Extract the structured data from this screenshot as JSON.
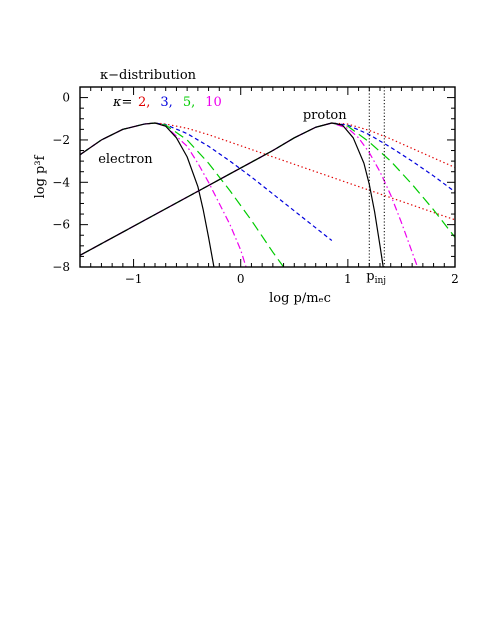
{
  "chart_data": {
    "type": "line",
    "title": "κ−distribution",
    "xlabel": "log p/mₑc",
    "ylabel": "log p³f",
    "xlim": [
      -1.5,
      2.0
    ],
    "ylim": [
      -8,
      0.5
    ],
    "x_ticks": [
      -1,
      0,
      1,
      2
    ],
    "x_tick_labels": [
      "−1",
      "0",
      "1",
      "2"
    ],
    "y_ticks": [
      0,
      -2,
      -4,
      -6,
      -8
    ],
    "y_tick_labels": [
      "0",
      "−2",
      "−4",
      "−6",
      "−8"
    ],
    "grid": false,
    "legend": {
      "prefix": "κ=",
      "entries": [
        {
          "label": "2,",
          "color": "#e00000"
        },
        {
          "label": "3,",
          "color": "#0000dd"
        },
        {
          "label": "5,",
          "color": "#00cc00"
        },
        {
          "label": "10",
          "color": "#ee00ee"
        }
      ],
      "placement": "top-left"
    },
    "annotations": [
      {
        "text": "electron",
        "x": -1.33,
        "y": -3.1
      },
      {
        "text": "proton",
        "x": 0.58,
        "y": -1.0
      }
    ],
    "reference_lines": {
      "label": "p",
      "label_subscript": "inj",
      "x": [
        1.2,
        1.34
      ]
    },
    "series": [
      {
        "group": "electron",
        "kappa": "2",
        "color": "#e00000",
        "dash": "dotted",
        "x": [
          -1.5,
          -1.3,
          -1.1,
          -0.9,
          -0.8,
          -0.7,
          -0.5,
          -0.3,
          -0.1,
          0.1,
          0.3,
          0.5,
          0.7,
          0.9,
          1.1,
          1.3,
          1.5,
          1.7,
          1.9,
          2.0
        ],
        "y": [
          -2.7,
          -2.0,
          -1.5,
          -1.25,
          -1.2,
          -1.25,
          -1.45,
          -1.75,
          -2.1,
          -2.45,
          -2.8,
          -3.15,
          -3.5,
          -3.85,
          -4.2,
          -4.55,
          -4.9,
          -5.25,
          -5.6,
          -5.77
        ]
      },
      {
        "group": "electron",
        "kappa": "3",
        "color": "#0000dd",
        "dash": "short-dash",
        "x": [
          -1.5,
          -1.3,
          -1.1,
          -0.9,
          -0.8,
          -0.7,
          -0.5,
          -0.3,
          -0.1,
          0.1,
          0.3,
          0.5,
          0.7,
          0.85
        ],
        "y": [
          -2.7,
          -2.0,
          -1.5,
          -1.25,
          -1.2,
          -1.28,
          -1.7,
          -2.3,
          -3.0,
          -3.75,
          -4.55,
          -5.35,
          -6.15,
          -6.75
        ]
      },
      {
        "group": "electron",
        "kappa": "5",
        "color": "#00cc00",
        "dash": "long-dash",
        "x": [
          -1.5,
          -1.3,
          -1.1,
          -0.9,
          -0.8,
          -0.7,
          -0.5,
          -0.3,
          -0.1,
          0.1,
          0.3,
          0.4
        ],
        "y": [
          -2.7,
          -2.0,
          -1.5,
          -1.25,
          -1.2,
          -1.3,
          -2.0,
          -3.1,
          -4.4,
          -5.8,
          -7.3,
          -8.0
        ]
      },
      {
        "group": "electron",
        "kappa": "10",
        "color": "#ee00ee",
        "dash": "dash-dot",
        "x": [
          -1.5,
          -1.3,
          -1.1,
          -0.9,
          -0.8,
          -0.7,
          -0.5,
          -0.4,
          -0.3,
          -0.2,
          -0.1,
          0.0,
          0.05
        ],
        "y": [
          -2.7,
          -2.0,
          -1.5,
          -1.25,
          -1.2,
          -1.35,
          -2.3,
          -3.1,
          -4.0,
          -5.0,
          -6.0,
          -7.2,
          -8.0
        ]
      },
      {
        "group": "electron",
        "kappa": "Maxwellian",
        "color": "#000000",
        "dash": "solid",
        "x": [
          -1.5,
          -1.3,
          -1.1,
          -0.9,
          -0.8,
          -0.7,
          -0.6,
          -0.5,
          -0.4,
          -0.35,
          -0.3,
          -0.25
        ],
        "y": [
          -2.7,
          -2.0,
          -1.5,
          -1.25,
          -1.2,
          -1.35,
          -1.9,
          -2.8,
          -4.2,
          -5.3,
          -6.6,
          -8.0
        ]
      },
      {
        "group": "proton",
        "kappa": "2",
        "color": "#e00000",
        "dash": "dotted",
        "x": [
          -1.5,
          -1.3,
          -1.1,
          -0.9,
          -0.7,
          -0.5,
          -0.3,
          -0.1,
          0.1,
          0.3,
          0.5,
          0.7,
          0.85,
          1.0,
          1.2,
          1.4,
          1.6,
          1.8,
          2.0
        ],
        "y": [
          -7.45,
          -6.9,
          -6.35,
          -5.8,
          -5.25,
          -4.7,
          -4.15,
          -3.6,
          -3.05,
          -2.5,
          -1.9,
          -1.4,
          -1.2,
          -1.25,
          -1.55,
          -1.95,
          -2.4,
          -2.85,
          -3.3
        ]
      },
      {
        "group": "proton",
        "kappa": "3",
        "color": "#0000dd",
        "dash": "short-dash",
        "x": [
          -1.5,
          -1.3,
          -1.1,
          -0.9,
          -0.7,
          -0.5,
          -0.3,
          -0.1,
          0.1,
          0.3,
          0.5,
          0.7,
          0.85,
          1.0,
          1.2,
          1.4,
          1.6,
          1.8,
          2.0
        ],
        "y": [
          -7.45,
          -6.9,
          -6.35,
          -5.8,
          -5.25,
          -4.7,
          -4.15,
          -3.6,
          -3.05,
          -2.5,
          -1.9,
          -1.4,
          -1.2,
          -1.3,
          -1.75,
          -2.35,
          -3.0,
          -3.7,
          -4.45
        ]
      },
      {
        "group": "proton",
        "kappa": "5",
        "color": "#00cc00",
        "dash": "long-dash",
        "x": [
          -1.5,
          -1.3,
          -1.1,
          -0.9,
          -0.7,
          -0.5,
          -0.3,
          -0.1,
          0.1,
          0.3,
          0.5,
          0.7,
          0.85,
          1.0,
          1.2,
          1.4,
          1.6,
          1.8,
          2.0
        ],
        "y": [
          -7.45,
          -6.9,
          -6.35,
          -5.8,
          -5.25,
          -4.7,
          -4.15,
          -3.6,
          -3.05,
          -2.5,
          -1.9,
          -1.4,
          -1.2,
          -1.35,
          -2.1,
          -3.0,
          -4.1,
          -5.3,
          -6.6
        ]
      },
      {
        "group": "proton",
        "kappa": "10",
        "color": "#ee00ee",
        "dash": "dash-dot",
        "x": [
          -1.5,
          -1.3,
          -1.1,
          -0.9,
          -0.7,
          -0.5,
          -0.3,
          -0.1,
          0.1,
          0.3,
          0.5,
          0.7,
          0.85,
          1.0,
          1.1,
          1.2,
          1.3,
          1.4,
          1.5,
          1.6,
          1.65
        ],
        "y": [
          -7.45,
          -6.9,
          -6.35,
          -5.8,
          -5.25,
          -4.7,
          -4.15,
          -3.6,
          -3.05,
          -2.5,
          -1.9,
          -1.4,
          -1.2,
          -1.45,
          -1.9,
          -2.6,
          -3.5,
          -4.6,
          -5.9,
          -7.3,
          -8.0
        ]
      },
      {
        "group": "proton",
        "kappa": "Maxwellian",
        "color": "#000000",
        "dash": "solid",
        "x": [
          -1.5,
          -1.3,
          -1.1,
          -0.9,
          -0.7,
          -0.5,
          -0.3,
          -0.1,
          0.1,
          0.3,
          0.5,
          0.7,
          0.85,
          0.95,
          1.05,
          1.15,
          1.2,
          1.25,
          1.3,
          1.33
        ],
        "y": [
          -7.45,
          -6.9,
          -6.35,
          -5.8,
          -5.25,
          -4.7,
          -4.15,
          -3.6,
          -3.05,
          -2.5,
          -1.9,
          -1.4,
          -1.2,
          -1.3,
          -1.9,
          -3.1,
          -4.1,
          -5.4,
          -7.0,
          -8.0
        ]
      }
    ]
  }
}
